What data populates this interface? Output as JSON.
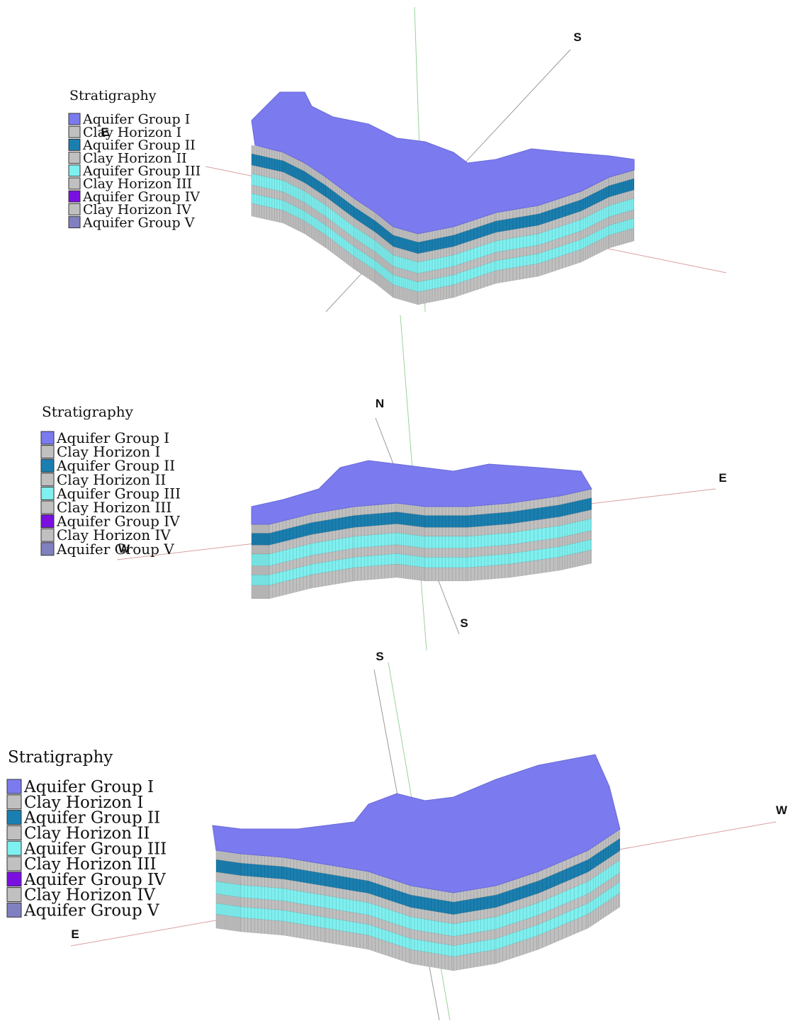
{
  "panels": [
    {
      "legend": {
        "title": "Stratigraphy",
        "items": [
          {
            "label": "Aquifer Group I",
            "color": "#7b7bef"
          },
          {
            "label": "Clay Horizon I",
            "color": "#c0c0c0"
          },
          {
            "label": "Aquifer Group II",
            "color": "#1a7fb0"
          },
          {
            "label": "Clay Horizon II",
            "color": "#c0c0c0"
          },
          {
            "label": "Aquifer Group III",
            "color": "#7ff0f0"
          },
          {
            "label": "Clay Horizon III",
            "color": "#c0c0c0"
          },
          {
            "label": "Aquifer Group IV",
            "color": "#7a10e0"
          },
          {
            "label": "Clay Horizon IV",
            "color": "#c0c0c0"
          },
          {
            "label": "Aquifer Group V",
            "color": "#8080c0"
          }
        ]
      },
      "directions": [
        "S",
        "E"
      ]
    },
    {
      "legend": {
        "title": "Stratigraphy",
        "items": [
          {
            "label": "Aquifer Group I",
            "color": "#7b7bef"
          },
          {
            "label": "Clay Horizon I",
            "color": "#c0c0c0"
          },
          {
            "label": "Aquifer Group II",
            "color": "#1a7fb0"
          },
          {
            "label": "Clay Horizon II",
            "color": "#c0c0c0"
          },
          {
            "label": "Aquifer Group III",
            "color": "#7ff0f0"
          },
          {
            "label": "Clay Horizon III",
            "color": "#c0c0c0"
          },
          {
            "label": "Aquifer Group IV",
            "color": "#7a10e0"
          },
          {
            "label": "Clay Horizon IV",
            "color": "#c0c0c0"
          },
          {
            "label": "Aquifer Group V",
            "color": "#8080c0"
          }
        ]
      },
      "directions": [
        "N",
        "E",
        "W",
        "S"
      ]
    },
    {
      "legend": {
        "title": "Stratigraphy",
        "items": [
          {
            "label": "Aquifer Group I",
            "color": "#7b7bef"
          },
          {
            "label": "Clay Horizon I",
            "color": "#c0c0c0"
          },
          {
            "label": "Aquifer Group II",
            "color": "#1a7fb0"
          },
          {
            "label": "Clay Horizon II",
            "color": "#c0c0c0"
          },
          {
            "label": "Aquifer Group III",
            "color": "#7ff0f0"
          },
          {
            "label": "Clay Horizon III",
            "color": "#c0c0c0"
          },
          {
            "label": "Aquifer Group IV",
            "color": "#7a10e0"
          },
          {
            "label": "Clay Horizon IV",
            "color": "#c0c0c0"
          },
          {
            "label": "Aquifer Group V",
            "color": "#8080c0"
          }
        ]
      },
      "directions": [
        "S",
        "W",
        "E"
      ]
    }
  ]
}
